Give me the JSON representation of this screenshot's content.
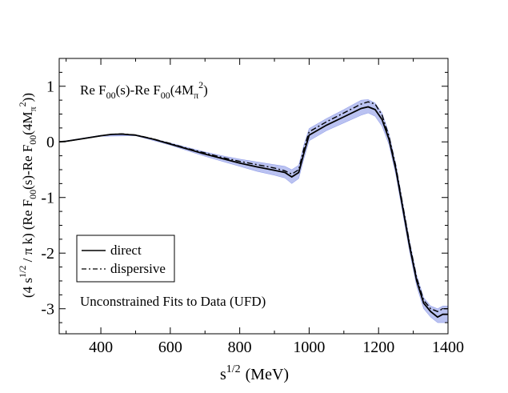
{
  "chart_data": {
    "type": "line",
    "title": "",
    "xlabel": {
      "base": "s",
      "exp": "1/2",
      "unit": "(MeV)"
    },
    "ylabel": {
      "pre": "(4 s",
      "exp1": "1/2",
      "mid": " / π k) (Re F",
      "sub1": "00",
      "mid2": "(s)-Re F",
      "sub2": "00",
      "mid3": "(4M",
      "sub3": "π",
      "exp3": "2",
      "post": "))"
    },
    "xlim": [
      280,
      1400
    ],
    "ylim": [
      -3.45,
      1.5
    ],
    "grid": false,
    "x_ticks": [
      400,
      600,
      800,
      1000,
      1200,
      1400
    ],
    "y_ticks": [
      1,
      0,
      -1,
      -2,
      -3
    ],
    "inset_label": {
      "pre": "Re F",
      "sub1": "00",
      "mid": "(s)-Re F",
      "sub2": "00",
      "mid2": "(4M",
      "sub3": "π",
      "exp3": "2",
      "post": ")"
    },
    "caption": "Unconstrained Fits to Data (UFD)",
    "legend": {
      "position": "lower-left",
      "entries": [
        "direct",
        "dispersive"
      ]
    },
    "colors": {
      "line": "#000000",
      "band": "#3a4fd8"
    },
    "series": [
      {
        "name": "direct",
        "style": "solid",
        "x": [
          280,
          300,
          350,
          400,
          430,
          460,
          500,
          550,
          600,
          650,
          700,
          750,
          800,
          850,
          900,
          930,
          950,
          970,
          985,
          1000,
          1050,
          1100,
          1150,
          1170,
          1190,
          1210,
          1230,
          1250,
          1270,
          1290,
          1310,
          1330,
          1350,
          1370,
          1385,
          1400
        ],
        "y": [
          0.0,
          0.01,
          0.06,
          0.11,
          0.135,
          0.14,
          0.12,
          0.05,
          -0.04,
          -0.13,
          -0.22,
          -0.3,
          -0.38,
          -0.45,
          -0.51,
          -0.55,
          -0.63,
          -0.55,
          -0.2,
          0.12,
          0.3,
          0.45,
          0.6,
          0.63,
          0.58,
          0.4,
          0.05,
          -0.5,
          -1.2,
          -1.9,
          -2.5,
          -2.9,
          -3.05,
          -3.15,
          -3.1,
          -3.1
        ]
      },
      {
        "name": "dispersive",
        "style": "dashed",
        "x": [
          280,
          300,
          350,
          400,
          430,
          460,
          500,
          550,
          600,
          650,
          700,
          750,
          800,
          850,
          900,
          930,
          950,
          970,
          985,
          1000,
          1050,
          1100,
          1150,
          1170,
          1190,
          1210,
          1230,
          1250,
          1270,
          1290,
          1310,
          1330,
          1350,
          1370,
          1385,
          1400
        ],
        "y": [
          0.0,
          0.01,
          0.06,
          0.11,
          0.135,
          0.145,
          0.125,
          0.055,
          -0.03,
          -0.12,
          -0.2,
          -0.28,
          -0.35,
          -0.41,
          -0.47,
          -0.52,
          -0.58,
          -0.5,
          -0.12,
          0.18,
          0.36,
          0.52,
          0.68,
          0.72,
          0.68,
          0.48,
          0.1,
          -0.45,
          -1.15,
          -1.85,
          -2.45,
          -2.85,
          -3.0,
          -3.05,
          -3.0,
          -3.0
        ]
      }
    ],
    "band": {
      "x": [
        280,
        400,
        500,
        600,
        650,
        700,
        750,
        800,
        850,
        900,
        930,
        950,
        970,
        985,
        1000,
        1050,
        1100,
        1150,
        1170,
        1190,
        1210,
        1230,
        1250,
        1270,
        1290,
        1310,
        1330,
        1350,
        1370,
        1385,
        1400
      ],
      "upper": [
        0.0,
        0.12,
        0.13,
        -0.02,
        -0.1,
        -0.18,
        -0.25,
        -0.31,
        -0.36,
        -0.41,
        -0.44,
        -0.5,
        -0.42,
        -0.05,
        0.24,
        0.42,
        0.58,
        0.75,
        0.76,
        0.7,
        0.52,
        0.15,
        -0.4,
        -1.1,
        -1.8,
        -2.4,
        -2.8,
        -2.95,
        -3.0,
        -2.95,
        -2.95
      ],
      "lower": [
        0.0,
        0.1,
        0.11,
        -0.06,
        -0.16,
        -0.26,
        -0.35,
        -0.44,
        -0.53,
        -0.6,
        -0.65,
        -0.75,
        -0.66,
        -0.3,
        0.02,
        0.2,
        0.34,
        0.48,
        0.52,
        0.46,
        0.28,
        -0.05,
        -0.6,
        -1.3,
        -2.0,
        -2.6,
        -3.0,
        -3.15,
        -3.25,
        -3.25,
        -3.25
      ]
    }
  }
}
